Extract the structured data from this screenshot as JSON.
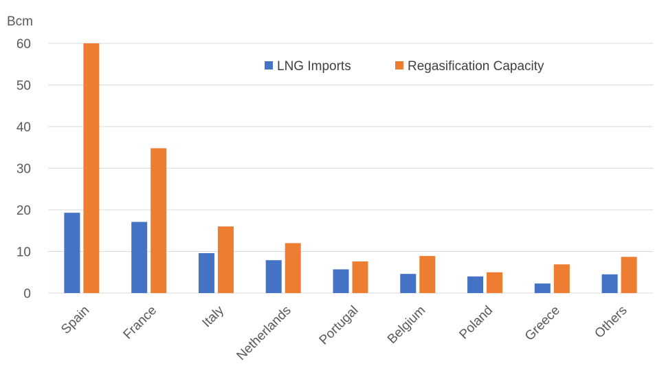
{
  "chart_data": {
    "type": "bar",
    "title": "",
    "xlabel": "",
    "ylabel": "Bcm",
    "ylim": [
      0,
      60
    ],
    "yticks": [
      0,
      10,
      20,
      30,
      40,
      50,
      60
    ],
    "grid": true,
    "legend_position": "top-right",
    "categories": [
      "Spain",
      "France",
      "Italy",
      "Netherlands",
      "Portugal",
      "Belgium",
      "Poland",
      "Greece",
      "Others"
    ],
    "series": [
      {
        "name": "LNG Imports",
        "color": "#4472c4",
        "values": [
          19.3,
          17.1,
          9.6,
          7.9,
          5.7,
          4.6,
          4.0,
          2.3,
          4.5
        ]
      },
      {
        "name": "Regasification Capacity",
        "color": "#ed7d31",
        "values": [
          60.0,
          34.8,
          16.0,
          12.0,
          7.6,
          8.9,
          5.0,
          6.9,
          8.7
        ]
      }
    ]
  }
}
